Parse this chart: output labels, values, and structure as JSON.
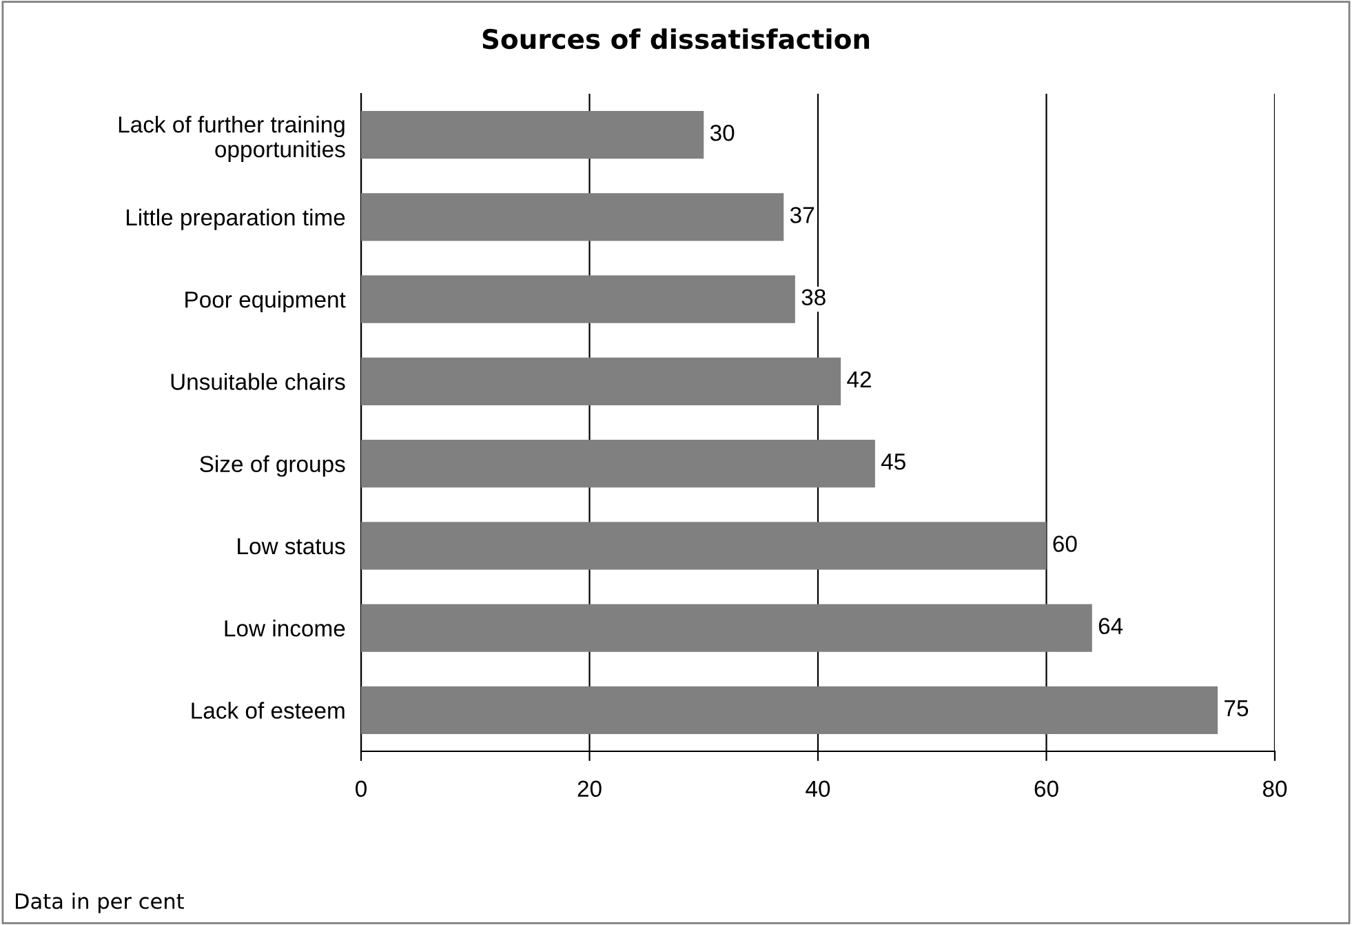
{
  "chart_data": {
    "type": "bar",
    "orientation": "horizontal",
    "title": "Sources of dissatisfaction",
    "categories": [
      "Lack of further training opportunities",
      "Little preparation time",
      "Poor equipment",
      "Unsuitable chairs",
      "Size of groups",
      "Low status",
      "Low income",
      "Lack of esteem"
    ],
    "values": [
      30,
      37,
      38,
      42,
      45,
      60,
      64,
      75
    ],
    "color": "#808080",
    "xlim": [
      0,
      80
    ],
    "xticks": [
      0,
      20,
      40,
      60,
      80
    ],
    "grid": "x",
    "data_labels": true,
    "annotations": [
      "Data in per cent"
    ]
  }
}
